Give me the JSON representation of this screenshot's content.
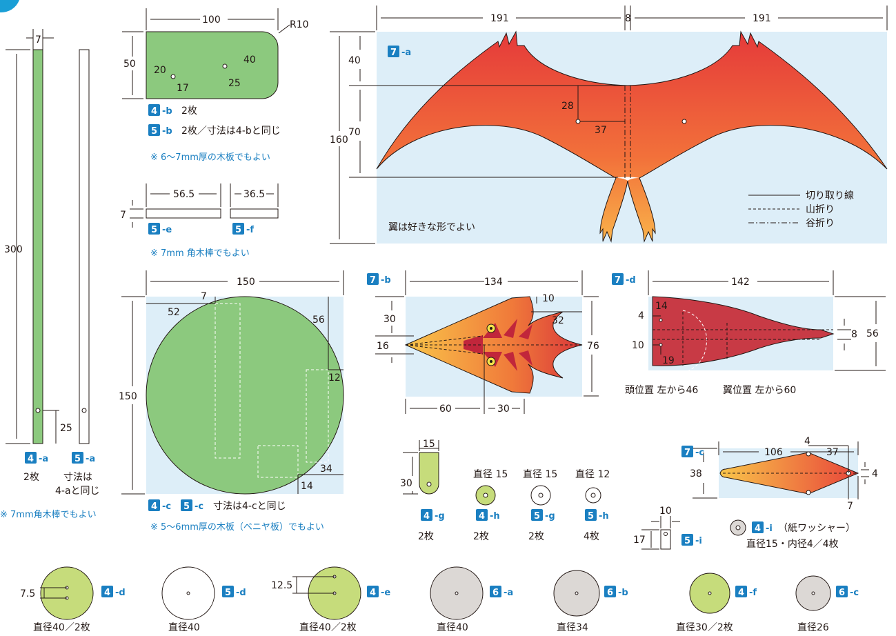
{
  "colors": {
    "wood_green": "#8cc97e",
    "light_green": "#c6dc7b",
    "part_blue": "#1a7fc1",
    "sky": "#ddeef8",
    "gray": "#dcd8d5",
    "body_red": "#c83a45",
    "wing_top": "#e83a3a",
    "wing_bottom": "#f8a847"
  },
  "rod": {
    "width": "7",
    "length": "300",
    "hole": "25"
  },
  "part_4a": {
    "num": "4",
    "suf": "-a",
    "qty": "2枚"
  },
  "part_5a": {
    "num": "5",
    "suf": "-a",
    "note1": "寸法は",
    "note2": "4-aと同じ"
  },
  "rod_note": "※ 7mm角木棒でもよい",
  "plate": {
    "width": "100",
    "radius": "R10",
    "height": "50",
    "h20": "20",
    "h17": "17",
    "h40": "40",
    "h25": "25"
  },
  "part_4b": {
    "num": "4",
    "suf": "-b",
    "qty": "2枚"
  },
  "part_5b": {
    "num": "5",
    "suf": "-b",
    "qty": "2枚／寸法は4-bと同じ"
  },
  "plate_note": "※ 6〜7mm厚の木板でもよい",
  "sticks": {
    "e_len": "56.5",
    "f_len": "36.5",
    "thick": "7"
  },
  "part_5e": {
    "num": "5",
    "suf": "-e"
  },
  "part_5f": {
    "num": "5",
    "suf": "-f"
  },
  "stick_note": "※ 7mm 角木棒でもよい",
  "disc": {
    "width": "150",
    "height": "150",
    "d7": "7",
    "d52": "52",
    "d56": "56",
    "d12": "12",
    "d34": "34",
    "d14": "14"
  },
  "part_4c": {
    "num": "4",
    "suf": "-c"
  },
  "part_5c": {
    "num": "5",
    "suf": "-c",
    "qty": "寸法は4-cと同じ"
  },
  "disc_note": "※ 5〜6mm厚の木板（ベニヤ板）でもよい",
  "wing": {
    "w1": "191",
    "mid": "8",
    "w2": "191",
    "h40": "40",
    "h70": "70",
    "h160": "160",
    "d28": "28",
    "d37": "37",
    "note": "翼は好きな形でよい"
  },
  "part_7a": {
    "num": "7",
    "suf": "-a"
  },
  "legend": [
    "切り取り線",
    "山折り",
    "谷折り"
  ],
  "head": {
    "w": "134",
    "h30": "30",
    "h16": "16",
    "h76": "76",
    "t10": "10",
    "t32": "32",
    "b60": "60",
    "b30": "30"
  },
  "part_7b": {
    "num": "7",
    "suf": "-b"
  },
  "body": {
    "w": "142",
    "h56": "56",
    "d14": "14",
    "d4": "4",
    "d10": "10",
    "d19": "19",
    "d8": "8",
    "cap1": "頭位置 左から46",
    "cap2": "翼位置 左から60"
  },
  "part_7d": {
    "num": "7",
    "suf": "-d"
  },
  "tail": {
    "w": "106",
    "d4a": "4",
    "d37": "37",
    "h38": "38",
    "d4b": "4",
    "d7": "7"
  },
  "part_7c": {
    "num": "7",
    "suf": "-c"
  },
  "part_4g": {
    "num": "4",
    "suf": "-g",
    "qty": "2枚",
    "w": "15",
    "h": "30"
  },
  "part_4h": {
    "num": "4",
    "suf": "-h",
    "qty": "2枚",
    "dia": "直径 15"
  },
  "part_5g": {
    "num": "5",
    "suf": "-g",
    "qty": "2枚",
    "dia": "直径 15"
  },
  "part_5h": {
    "num": "5",
    "suf": "-h",
    "qty": "4枚",
    "dia": "直径 12"
  },
  "part_5i": {
    "num": "5",
    "suf": "-i",
    "w": "10",
    "h": "17"
  },
  "part_4i": {
    "num": "4",
    "suf": "-i",
    "note": "（紙ワッシャー）",
    "spec": "直径15・内径4／4枚"
  },
  "wheels": [
    {
      "num": "4",
      "suf": "-d",
      "cap": "直径40／2枚",
      "off": "7.5"
    },
    {
      "num": "5",
      "suf": "-d",
      "cap": "直径40"
    },
    {
      "num": "4",
      "suf": "-e",
      "cap": "直径40／2枚",
      "off": "12.5"
    },
    {
      "num": "6",
      "suf": "-a",
      "cap": "直径40"
    },
    {
      "num": "6",
      "suf": "-b",
      "cap": "直径34"
    },
    {
      "num": "4",
      "suf": "-f",
      "cap": "直径30／2枚"
    },
    {
      "num": "6",
      "suf": "-c",
      "cap": "直径26"
    }
  ]
}
